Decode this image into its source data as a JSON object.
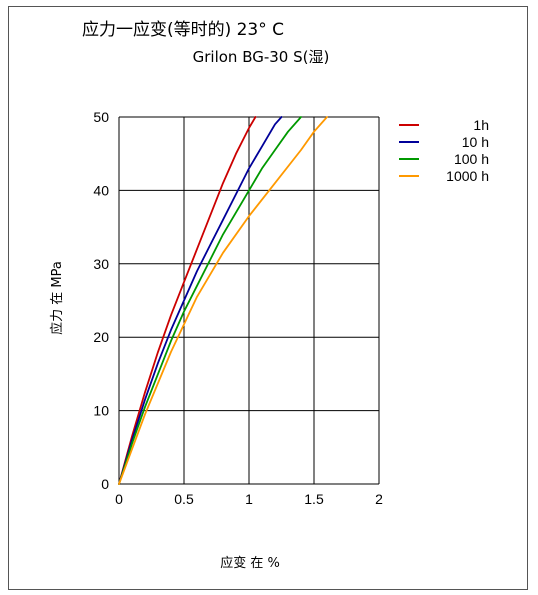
{
  "chart_data": {
    "type": "line",
    "title": "应力一应变(等时的) 23° C",
    "subtitle": "Grilon BG-30 S(湿)",
    "xlabel": "应变 在 %",
    "ylabel": "应力 在 MPa",
    "xlim": [
      0,
      2
    ],
    "ylim": [
      0,
      50
    ],
    "x_ticks": [
      "0",
      "0.5",
      "1",
      "1.5",
      "2"
    ],
    "y_ticks": [
      "0",
      "10",
      "20",
      "30",
      "40",
      "50"
    ],
    "grid": true,
    "legend_position": "right",
    "series": [
      {
        "name": "1h",
        "color": "#cc0000",
        "x": [
          0,
          0.1,
          0.2,
          0.3,
          0.4,
          0.5,
          0.6,
          0.7,
          0.8,
          0.9,
          1.0,
          1.05
        ],
        "y": [
          0,
          6.5,
          12.5,
          18,
          23,
          27.5,
          32,
          36.5,
          41,
          45,
          48.5,
          50
        ]
      },
      {
        "name": "10 h",
        "color": "#000099",
        "x": [
          0,
          0.1,
          0.2,
          0.3,
          0.4,
          0.5,
          0.6,
          0.7,
          0.8,
          0.9,
          1.0,
          1.1,
          1.2,
          1.25
        ],
        "y": [
          0,
          6,
          11.5,
          16.5,
          21,
          25,
          29,
          32.5,
          36,
          39.5,
          43,
          46,
          49,
          50
        ]
      },
      {
        "name": "100 h",
        "color": "#009900",
        "x": [
          0,
          0.1,
          0.2,
          0.3,
          0.4,
          0.5,
          0.6,
          0.7,
          0.8,
          0.9,
          1.0,
          1.1,
          1.2,
          1.3,
          1.4
        ],
        "y": [
          0,
          5.5,
          10.5,
          15,
          19.5,
          23.5,
          27,
          30.5,
          34,
          37,
          40,
          43,
          45.5,
          48,
          50
        ]
      },
      {
        "name": "1000 h",
        "color": "#ff9900",
        "x": [
          0,
          0.2,
          0.4,
          0.6,
          0.8,
          1.0,
          1.2,
          1.4,
          1.5,
          1.6
        ],
        "y": [
          0,
          9.5,
          18,
          25.5,
          31.5,
          36.5,
          41,
          45.5,
          48,
          50
        ]
      }
    ]
  }
}
